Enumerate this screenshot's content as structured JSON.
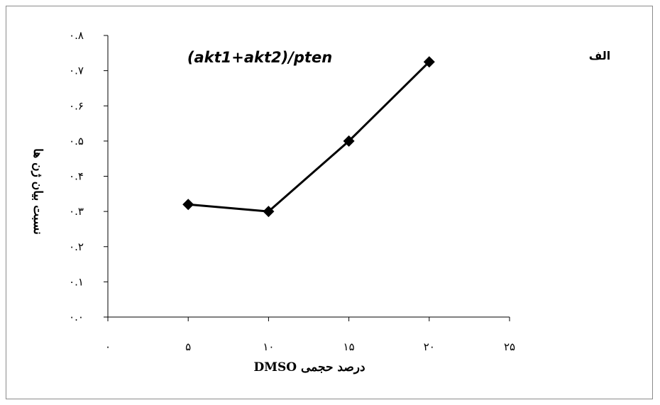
{
  "chart_data": {
    "type": "line",
    "title": "(akt1+akt2)/pten",
    "panel_label": "الف",
    "xlabel": "درصد حجمی DMSO",
    "ylabel": "نسبت بیان ژن ها",
    "xlim": [
      0,
      25
    ],
    "ylim": [
      0,
      0.8
    ],
    "x_ticks": [
      0,
      5,
      10,
      15,
      20,
      25
    ],
    "x_tick_labels": [
      "۰",
      "۵",
      "۱۰",
      "۱۵",
      "۲۰",
      "۲۵"
    ],
    "y_ticks": [
      0,
      0.1,
      0.2,
      0.3,
      0.4,
      0.5,
      0.6,
      0.7,
      0.8
    ],
    "y_tick_labels": [
      "۰.۰",
      "۰.۱",
      "۰.۲",
      "۰.۳",
      "۰.۴",
      "۰.۵",
      "۰.۶",
      "۰.۷",
      "۰.۸"
    ],
    "grid": false,
    "legend": "none",
    "series": [
      {
        "x": [
          5,
          10,
          15,
          20
        ],
        "y": [
          0.32,
          0.3,
          0.5,
          0.725
        ],
        "color": "#000000",
        "marker": "diamond"
      }
    ]
  }
}
